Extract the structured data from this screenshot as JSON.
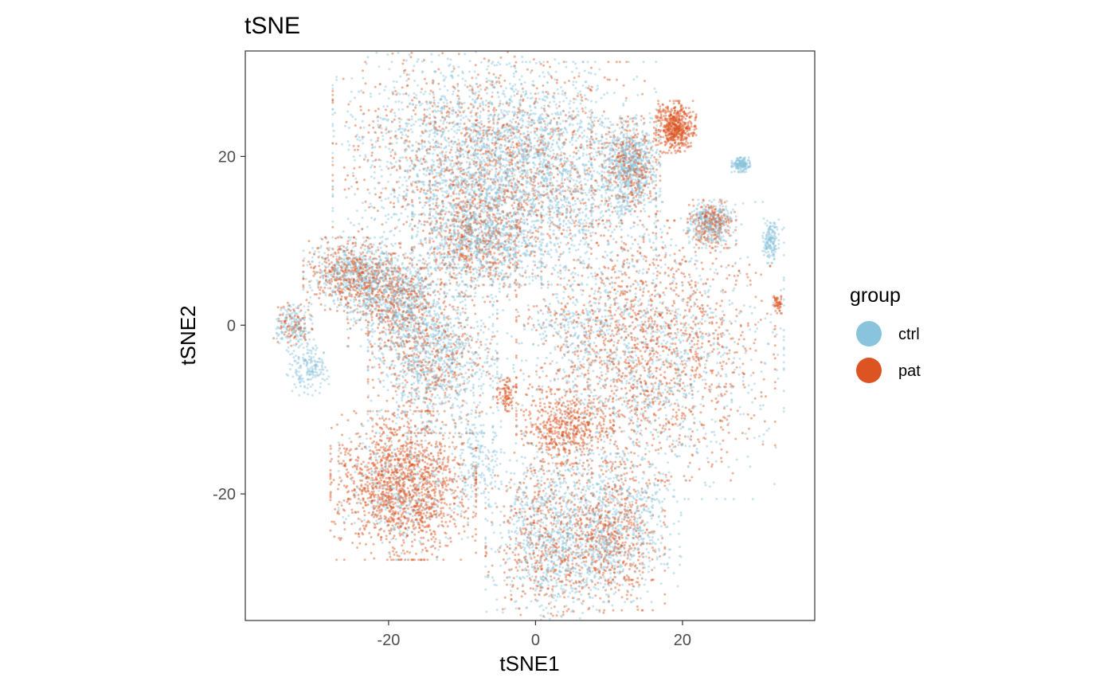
{
  "chart_data": {
    "type": "scatter",
    "title": "tSNE",
    "xlabel": "tSNE1",
    "ylabel": "tSNE2",
    "xlim": [
      -39.5,
      38
    ],
    "ylim": [
      -35,
      32.5
    ],
    "x_ticks": [
      -20,
      0,
      20
    ],
    "x_tick_labels": [
      "-20",
      "0",
      "20"
    ],
    "y_ticks": [
      -20,
      0,
      20
    ],
    "y_tick_labels": [
      "-20",
      "0",
      "20"
    ],
    "grid": false,
    "legend": {
      "title": "group",
      "placement": "right",
      "entries": [
        {
          "label": "ctrl",
          "color": "#89c4dc"
        },
        {
          "label": "pat",
          "color": "#dc5422"
        }
      ]
    },
    "series": [
      {
        "name": "ctrl",
        "color": "#89c4dc",
        "clusters": [
          {
            "center": [
              -10,
              20
            ],
            "spread": [
              8,
              6
            ],
            "density": 1.0
          },
          {
            "center": [
              1,
              18
            ],
            "spread": [
              7,
              6
            ],
            "density": 1.0
          },
          {
            "center": [
              -8,
              10
            ],
            "spread": [
              4,
              3
            ],
            "density": 0.5
          },
          {
            "center": [
              13,
              19
            ],
            "spread": [
              1.8,
              2.5
            ],
            "density": 0.4
          },
          {
            "center": [
              24,
              12
            ],
            "spread": [
              1.5,
              1.3
            ],
            "density": 0.2
          },
          {
            "center": [
              28,
              19
            ],
            "spread": [
              0.6,
              0.4
            ],
            "density": 0.1
          },
          {
            "center": [
              32,
              10
            ],
            "spread": [
              0.5,
              1.2
            ],
            "density": 0.1
          },
          {
            "center": [
              -25,
              6
            ],
            "spread": [
              3,
              2
            ],
            "density": 0.3
          },
          {
            "center": [
              -19,
              3
            ],
            "spread": [
              3,
              2.5
            ],
            "density": 0.4
          },
          {
            "center": [
              -14,
              -4
            ],
            "spread": [
              4,
              4
            ],
            "density": 0.6
          },
          {
            "center": [
              -33,
              0
            ],
            "spread": [
              1.2,
              1.2
            ],
            "density": 0.1
          },
          {
            "center": [
              -31,
              -5
            ],
            "spread": [
              1.3,
              1.5
            ],
            "density": 0.12
          },
          {
            "center": [
              -18,
              -19
            ],
            "spread": [
              4,
              4
            ],
            "density": 0.25
          },
          {
            "center": [
              -8,
              -16
            ],
            "spread": [
              1.5,
              2.5
            ],
            "density": 0.12
          },
          {
            "center": [
              4,
              0
            ],
            "spread": [
              2.5,
              1
            ],
            "density": 0.06
          },
          {
            "center": [
              14,
              -3
            ],
            "spread": [
              9,
              8
            ],
            "density": 0.9
          },
          {
            "center": [
              2,
              -25
            ],
            "spread": [
              4,
              5
            ],
            "density": 0.55
          },
          {
            "center": [
              11,
              -24
            ],
            "spread": [
              4,
              4
            ],
            "density": 0.45
          }
        ]
      },
      {
        "name": "pat",
        "color": "#dc5422",
        "clusters": [
          {
            "center": [
              -10,
              20
            ],
            "spread": [
              8,
              6
            ],
            "density": 0.55
          },
          {
            "center": [
              1,
              18
            ],
            "spread": [
              7,
              6
            ],
            "density": 0.35
          },
          {
            "center": [
              -8,
              10
            ],
            "spread": [
              4,
              3
            ],
            "density": 0.3
          },
          {
            "center": [
              19,
              23.5
            ],
            "spread": [
              1.3,
              1.4
            ],
            "density": 0.35
          },
          {
            "center": [
              13,
              19
            ],
            "spread": [
              1.8,
              2.5
            ],
            "density": 0.2
          },
          {
            "center": [
              24,
              12
            ],
            "spread": [
              1.5,
              1.3
            ],
            "density": 0.15
          },
          {
            "center": [
              -25,
              6
            ],
            "spread": [
              3,
              2
            ],
            "density": 0.3
          },
          {
            "center": [
              -19,
              3
            ],
            "spread": [
              3,
              2.5
            ],
            "density": 0.25
          },
          {
            "center": [
              -14,
              -4
            ],
            "spread": [
              4,
              4
            ],
            "density": 0.3
          },
          {
            "center": [
              -33,
              0
            ],
            "spread": [
              1.2,
              1.2
            ],
            "density": 0.06
          },
          {
            "center": [
              -18,
              -19
            ],
            "spread": [
              4.5,
              4
            ],
            "density": 1.0
          },
          {
            "center": [
              -4,
              -8
            ],
            "spread": [
              0.6,
              1
            ],
            "density": 0.06
          },
          {
            "center": [
              15,
              -3
            ],
            "spread": [
              8,
              7
            ],
            "density": 1.0
          },
          {
            "center": [
              4,
              -12
            ],
            "spread": [
              3,
              2
            ],
            "density": 0.3
          },
          {
            "center": [
              2,
              -25
            ],
            "spread": [
              4,
              5
            ],
            "density": 0.35
          },
          {
            "center": [
              11,
              -25
            ],
            "spread": [
              3,
              4
            ],
            "density": 0.35
          },
          {
            "center": [
              33,
              2.5
            ],
            "spread": [
              0.3,
              0.5
            ],
            "density": 0.03
          }
        ]
      }
    ]
  }
}
